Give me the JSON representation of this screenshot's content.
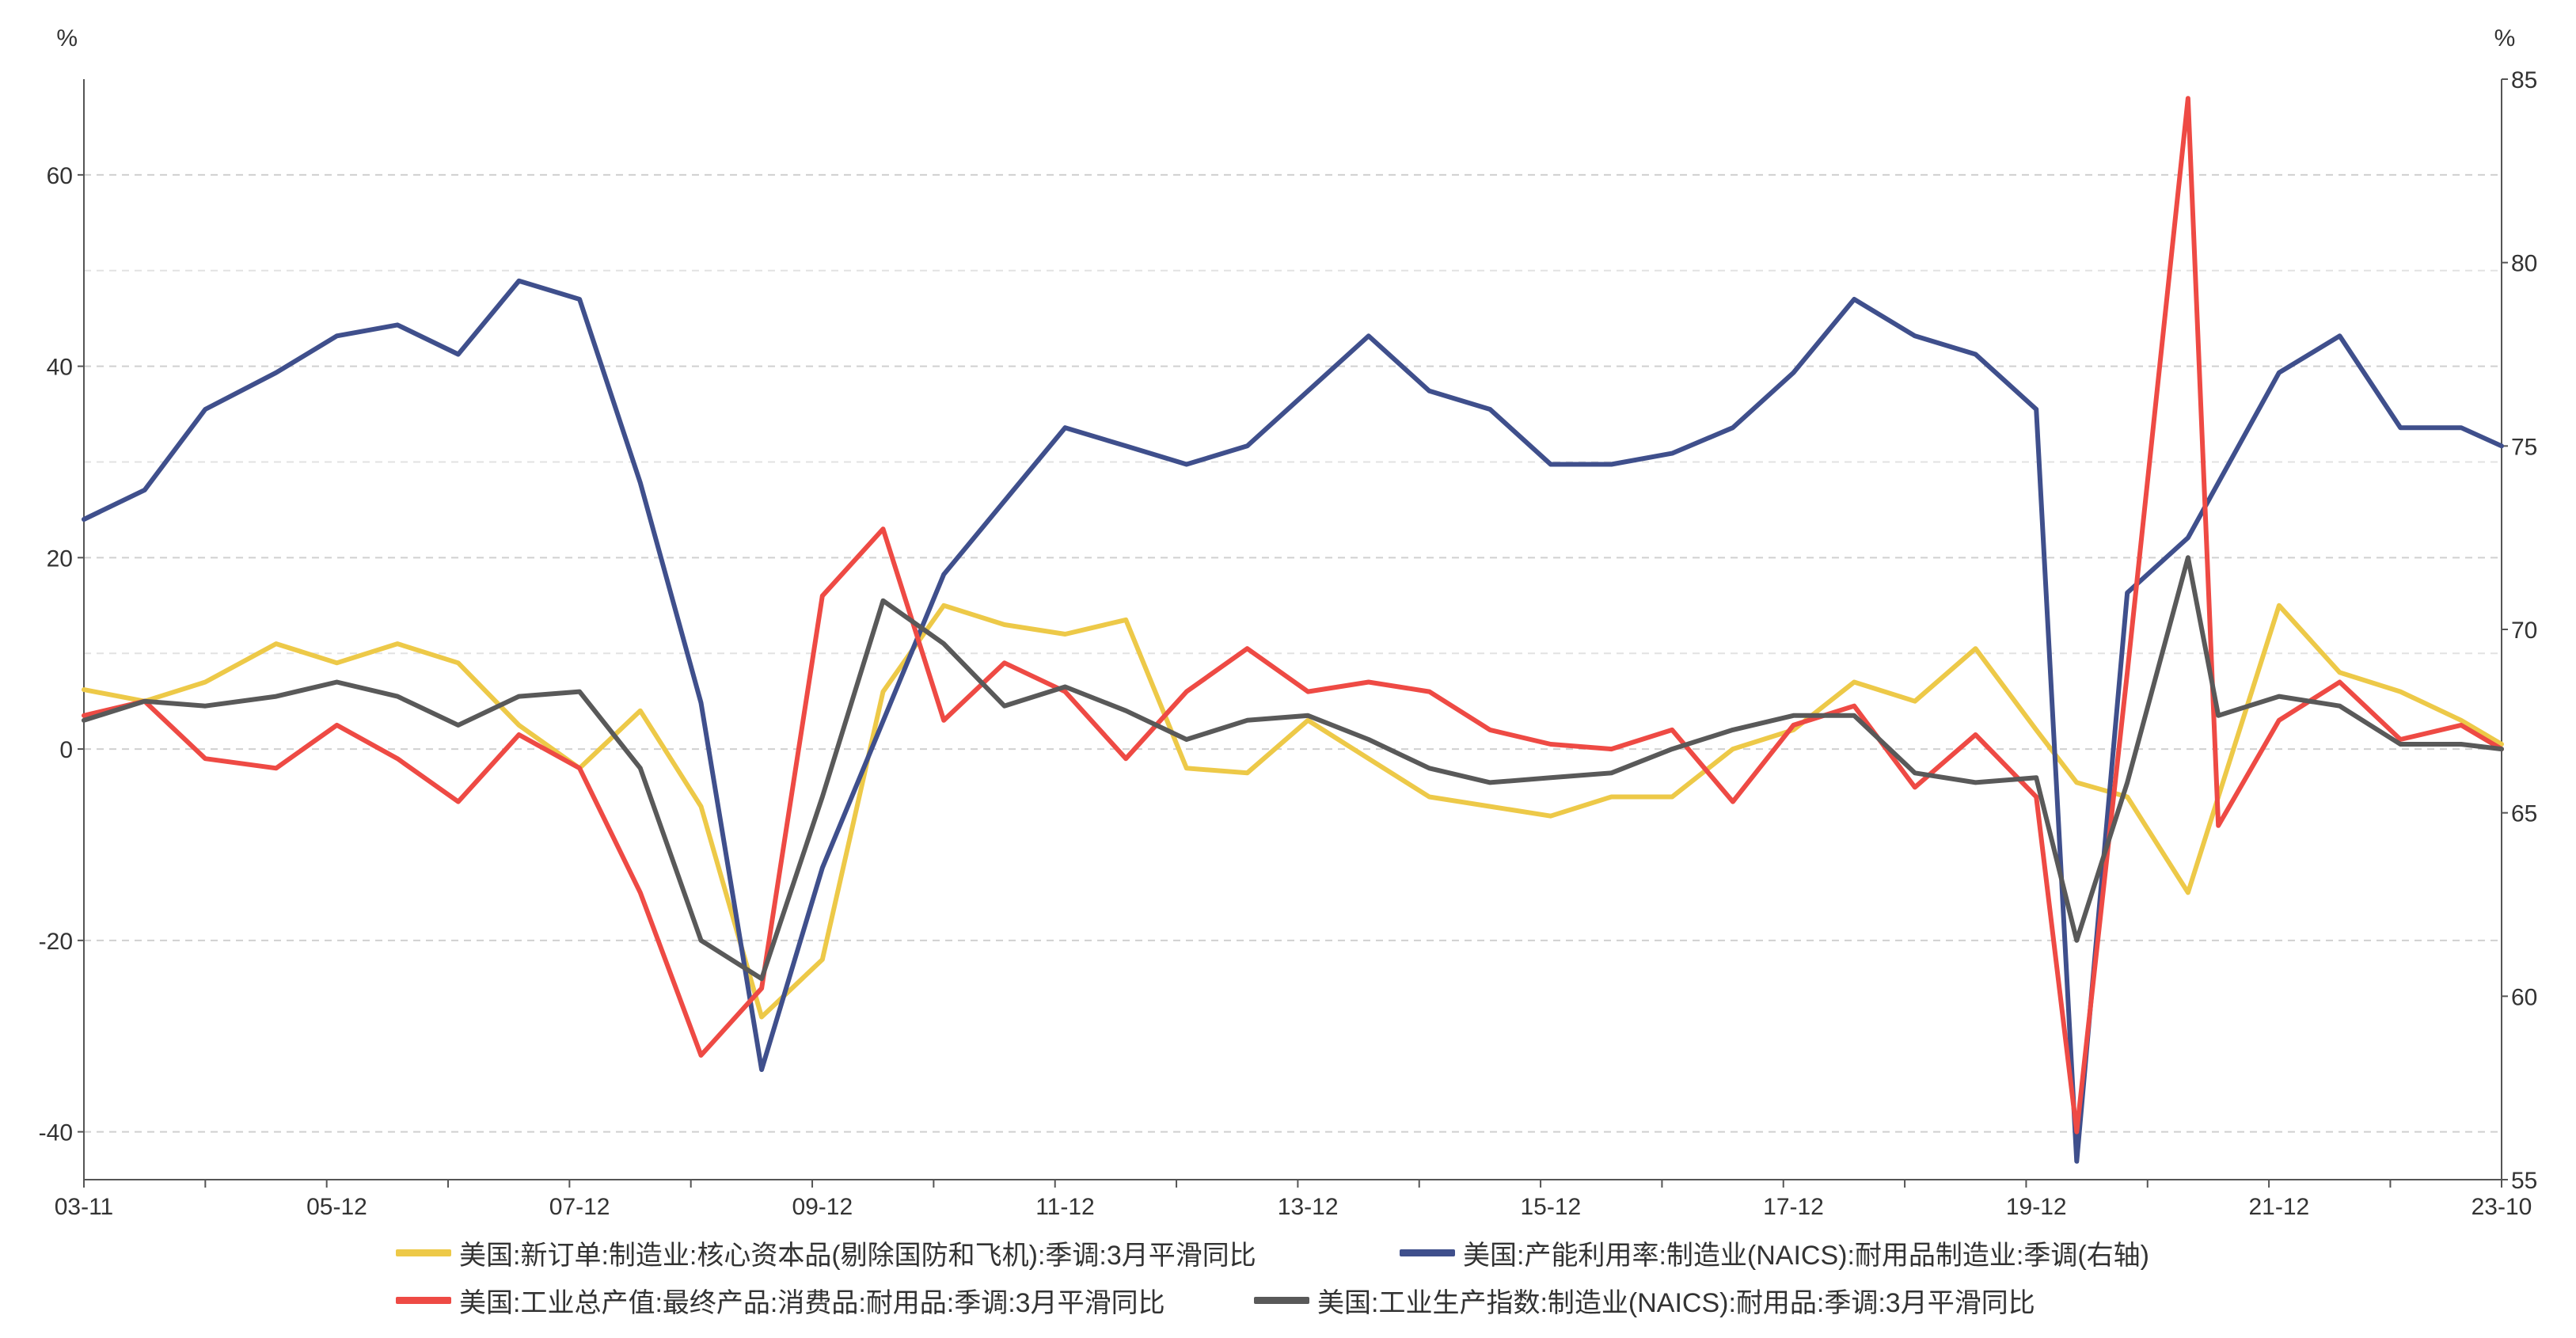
{
  "chart_data": {
    "type": "line",
    "left_axis": {
      "unit": "%",
      "ylim": [
        -45,
        70
      ],
      "ticks": [
        -40,
        -20,
        0,
        20,
        40,
        60
      ]
    },
    "right_axis": {
      "unit": "%",
      "ylim": [
        55,
        85
      ],
      "ticks": [
        55,
        60,
        65,
        70,
        75,
        80,
        85
      ]
    },
    "x_ticks": [
      "03-11",
      "05-12",
      "07-12",
      "09-12",
      "11-12",
      "13-12",
      "15-12",
      "17-12",
      "19-12",
      "21-12",
      "23-10"
    ],
    "grid": "horizontal dashed",
    "legend_position": "bottom",
    "series": [
      {
        "name": "美国:新订单:制造业:核心资本品(剔除国防和飞机):季调:3月平滑同比",
        "axis": "left",
        "color": "#EDC948",
        "x": [
          "2003-11",
          "2004-05",
          "2004-11",
          "2005-06",
          "2005-12",
          "2006-06",
          "2006-12",
          "2007-06",
          "2007-12",
          "2008-06",
          "2008-12",
          "2009-06",
          "2009-12",
          "2010-06",
          "2010-12",
          "2011-06",
          "2011-12",
          "2012-06",
          "2012-12",
          "2013-06",
          "2013-12",
          "2014-06",
          "2014-12",
          "2015-06",
          "2015-12",
          "2016-06",
          "2016-12",
          "2017-06",
          "2017-12",
          "2018-06",
          "2018-12",
          "2019-06",
          "2019-12",
          "2020-04",
          "2020-09",
          "2021-03",
          "2021-06",
          "2021-12",
          "2022-06",
          "2022-12",
          "2023-06",
          "2023-10"
        ],
        "values": [
          6.2,
          5.0,
          7.0,
          11.0,
          9.0,
          11.0,
          9.0,
          2.5,
          -2.0,
          4.0,
          -6.0,
          -28.0,
          -22.0,
          6.0,
          15.0,
          13.0,
          12.0,
          13.5,
          -2.0,
          -2.5,
          3.0,
          -1.0,
          -5.0,
          -6.0,
          -7.0,
          -5.0,
          -5.0,
          0.0,
          2.0,
          7.0,
          5.0,
          10.5,
          2.0,
          -3.5,
          -5.0,
          -15.0,
          -5.0,
          15.0,
          8.0,
          6.0,
          3.0,
          0.5
        ]
      },
      {
        "name": "美国:产能利用率:制造业(NAICS):耐用品制造业:季调(右轴)",
        "axis": "right",
        "color": "#3F4F8C",
        "x": [
          "2003-11",
          "2004-05",
          "2004-11",
          "2005-06",
          "2005-12",
          "2006-06",
          "2006-12",
          "2007-06",
          "2007-12",
          "2008-06",
          "2008-12",
          "2009-06",
          "2009-12",
          "2010-06",
          "2010-12",
          "2011-06",
          "2011-12",
          "2012-06",
          "2012-12",
          "2013-06",
          "2013-12",
          "2014-06",
          "2014-12",
          "2015-06",
          "2015-12",
          "2016-06",
          "2016-12",
          "2017-06",
          "2017-12",
          "2018-06",
          "2018-12",
          "2019-06",
          "2019-12",
          "2020-04",
          "2020-09",
          "2021-03",
          "2021-06",
          "2021-12",
          "2022-06",
          "2022-12",
          "2023-06",
          "2023-10"
        ],
        "values": [
          73.0,
          73.8,
          76.0,
          77.0,
          78.0,
          78.3,
          77.5,
          79.5,
          79.0,
          74.0,
          68.0,
          58.0,
          63.5,
          67.5,
          71.5,
          73.5,
          75.5,
          75.0,
          74.5,
          75.0,
          76.5,
          78.0,
          76.5,
          76.0,
          74.5,
          74.5,
          74.8,
          75.5,
          77.0,
          79.0,
          78.0,
          77.5,
          76.0,
          55.5,
          71.0,
          72.5,
          74.0,
          77.0,
          78.0,
          75.5,
          75.5,
          75.0
        ]
      },
      {
        "name": "美国:工业总产值:最终产品:消费品:耐用品:季调:3月平滑同比",
        "axis": "left",
        "color": "#EE4A44",
        "x": [
          "2003-11",
          "2004-05",
          "2004-11",
          "2005-06",
          "2005-12",
          "2006-06",
          "2006-12",
          "2007-06",
          "2007-12",
          "2008-06",
          "2008-12",
          "2009-06",
          "2009-12",
          "2010-06",
          "2010-12",
          "2011-06",
          "2011-12",
          "2012-06",
          "2012-12",
          "2013-06",
          "2013-12",
          "2014-06",
          "2014-12",
          "2015-06",
          "2015-12",
          "2016-06",
          "2016-12",
          "2017-06",
          "2017-12",
          "2018-06",
          "2018-12",
          "2019-06",
          "2019-12",
          "2020-04",
          "2020-09",
          "2021-03",
          "2021-06",
          "2021-12",
          "2022-06",
          "2022-12",
          "2023-06",
          "2023-10"
        ],
        "values": [
          3.5,
          5.0,
          -1.0,
          -2.0,
          2.5,
          -1.0,
          -5.5,
          1.5,
          -2.0,
          -15.0,
          -32.0,
          -25.0,
          16.0,
          23.0,
          3.0,
          9.0,
          6.0,
          -1.0,
          6.0,
          10.5,
          6.0,
          7.0,
          6.0,
          2.0,
          0.5,
          0.0,
          2.0,
          -5.5,
          2.5,
          4.5,
          -4.0,
          1.5,
          -5.0,
          -40.0,
          8.0,
          68.0,
          -8.0,
          3.0,
          7.0,
          1.0,
          2.5,
          0.0
        ]
      },
      {
        "name": "美国:工业生产指数:制造业(NAICS):耐用品:季调:3月平滑同比",
        "axis": "left",
        "color": "#595959",
        "x": [
          "2003-11",
          "2004-05",
          "2004-11",
          "2005-06",
          "2005-12",
          "2006-06",
          "2006-12",
          "2007-06",
          "2007-12",
          "2008-06",
          "2008-12",
          "2009-06",
          "2009-12",
          "2010-06",
          "2010-12",
          "2011-06",
          "2011-12",
          "2012-06",
          "2012-12",
          "2013-06",
          "2013-12",
          "2014-06",
          "2014-12",
          "2015-06",
          "2015-12",
          "2016-06",
          "2016-12",
          "2017-06",
          "2017-12",
          "2018-06",
          "2018-12",
          "2019-06",
          "2019-12",
          "2020-04",
          "2020-09",
          "2021-03",
          "2021-06",
          "2021-12",
          "2022-06",
          "2022-12",
          "2023-06",
          "2023-10"
        ],
        "values": [
          3.0,
          5.0,
          4.5,
          5.5,
          7.0,
          5.5,
          2.5,
          5.5,
          6.0,
          -2.0,
          -20.0,
          -24.0,
          -5.0,
          15.5,
          11.0,
          4.5,
          6.5,
          4.0,
          1.0,
          3.0,
          3.5,
          1.0,
          -2.0,
          -3.5,
          -3.0,
          -2.5,
          0.0,
          2.0,
          3.5,
          3.5,
          -2.5,
          -3.5,
          -3.0,
          -20.0,
          -3.5,
          20.0,
          3.5,
          5.5,
          4.5,
          0.5,
          0.5,
          0.0
        ]
      }
    ]
  }
}
